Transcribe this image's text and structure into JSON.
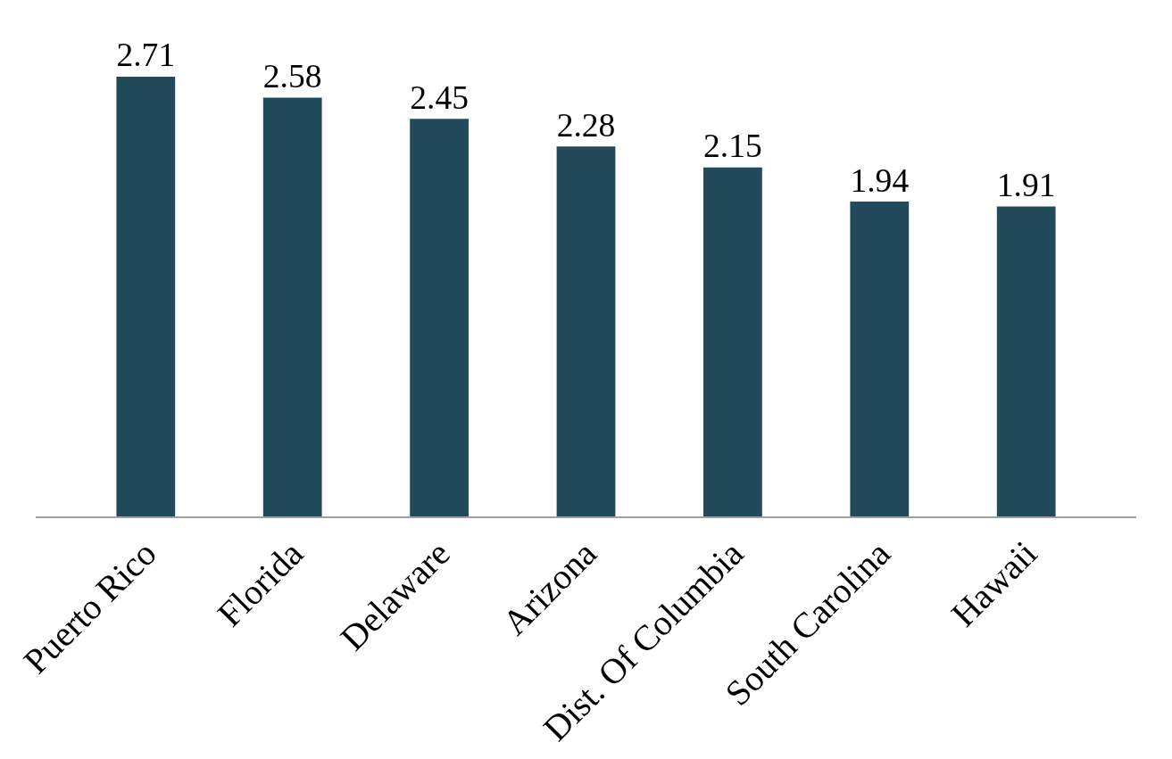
{
  "chart_data": {
    "type": "bar",
    "categories": [
      "Puerto Rico",
      "Florida",
      "Delaware",
      "Arizona",
      "Dist. Of Columbia",
      "South Carolina",
      "Hawaii"
    ],
    "values": [
      2.71,
      2.58,
      2.45,
      2.28,
      2.15,
      1.94,
      1.91
    ],
    "color": "#234a5a",
    "data_labels": true
  }
}
